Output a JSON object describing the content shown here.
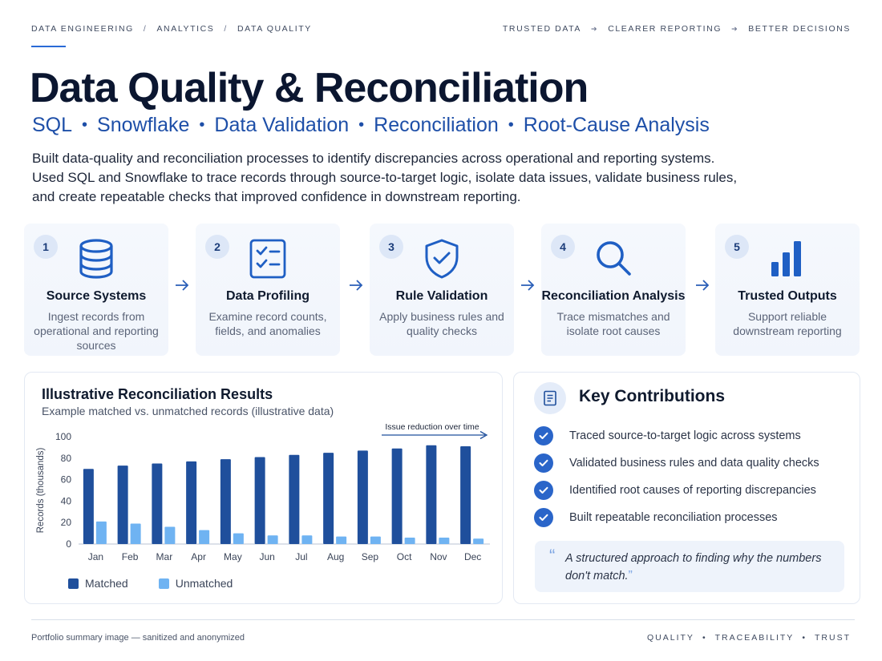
{
  "header": {
    "crumbs": [
      "DATA ENGINEERING",
      "ANALYTICS",
      "DATA QUALITY"
    ],
    "tagline": [
      "TRUSTED DATA",
      "CLEARER REPORTING",
      "BETTER DECISIONS"
    ]
  },
  "title": "Data Quality & Reconciliation",
  "subtitle": [
    "SQL",
    "Snowflake",
    "Data Validation",
    "Reconciliation",
    "Root-Cause Analysis"
  ],
  "description": [
    "Built data-quality and reconciliation processes to identify discrepancies across operational and reporting systems.",
    "Used SQL and Snowflake to trace records through source-to-target logic, isolate data issues, validate business rules,",
    "and create repeatable checks that improved confidence in downstream reporting."
  ],
  "steps": [
    {
      "num": "1",
      "icon": "database-icon",
      "title": "Source Systems",
      "text": "Ingest records from operational and reporting sources"
    },
    {
      "num": "2",
      "icon": "checklist-icon",
      "title": "Data Profiling",
      "text": "Examine record counts, fields, and anomalies"
    },
    {
      "num": "3",
      "icon": "shield-check-icon",
      "title": "Rule Validation",
      "text": "Apply business rules and quality checks"
    },
    {
      "num": "4",
      "icon": "magnifier-icon",
      "title": "Reconciliation Analysis",
      "text": "Trace mismatches and isolate root causes"
    },
    {
      "num": "5",
      "icon": "bar-chart-icon",
      "title": "Trusted Outputs",
      "text": "Support reliable downstream reporting"
    }
  ],
  "chart_panel": {
    "title": "Illustrative Reconciliation Results",
    "subtitle": "Example matched vs. unmatched records (illustrative data)",
    "annotation": "Issue reduction over time"
  },
  "chart_data": {
    "type": "bar",
    "title": "Illustrative Reconciliation Results",
    "subtitle": "Example matched vs. unmatched records (illustrative data)",
    "xlabel": "",
    "ylabel": "Records (thousands)",
    "ylim": [
      0,
      100
    ],
    "yticks": [
      0,
      20,
      40,
      60,
      80,
      100
    ],
    "categories": [
      "Jan",
      "Feb",
      "Mar",
      "Apr",
      "May",
      "Jun",
      "Jul",
      "Aug",
      "Sep",
      "Oct",
      "Nov",
      "Dec"
    ],
    "series": [
      {
        "name": "Matched",
        "color": "#1f4f9c",
        "values": [
          70,
          73,
          75,
          77,
          79,
          81,
          83,
          85,
          87,
          89,
          92,
          91
        ]
      },
      {
        "name": "Unmatched",
        "color": "#6fb3f2",
        "values": [
          21,
          19,
          16,
          13,
          10,
          8,
          8,
          7,
          7,
          6,
          6,
          5
        ]
      }
    ],
    "legend": "bottom-left",
    "annotation": "Issue reduction over time",
    "grid": false
  },
  "contributions": {
    "title": "Key Contributions",
    "items": [
      "Traced source-to-target logic across systems",
      "Validated business rules and data quality checks",
      "Identified root causes of reporting discrepancies",
      "Built repeatable reconciliation processes"
    ],
    "quote": "A structured approach to finding why the numbers don't match."
  },
  "footer": {
    "left": "Portfolio summary image — sanitized and anonymized",
    "right": [
      "QUALITY",
      "TRACEABILITY",
      "TRUST"
    ]
  },
  "colors": {
    "accent": "#2a6ad6",
    "matched": "#1f4f9c",
    "unmatched": "#6fb3f2"
  }
}
